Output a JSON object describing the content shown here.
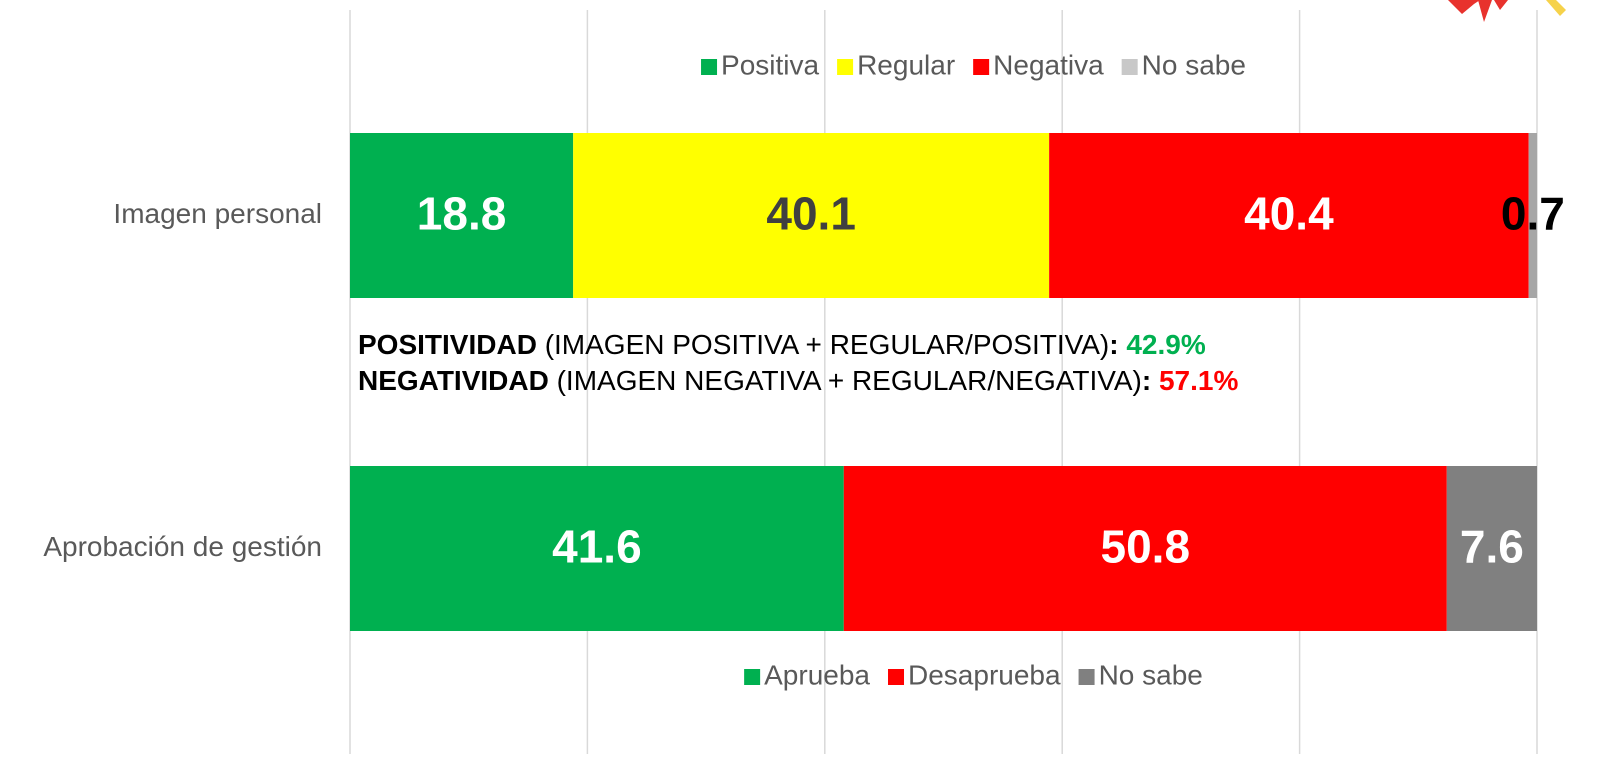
{
  "chart_data": [
    {
      "type": "bar",
      "orientation": "horizontal",
      "stacked": true,
      "categories": [
        "Imagen personal"
      ],
      "series": [
        {
          "name": "Positiva",
          "color": "#00b050",
          "label_color": "#ffffff",
          "values": [
            18.8
          ]
        },
        {
          "name": "Regular",
          "color": "#ffff00",
          "label_color": "#404040",
          "values": [
            40.1
          ]
        },
        {
          "name": "Negativa",
          "color": "#ff0000",
          "label_color": "#ffffff",
          "values": [
            40.4
          ]
        },
        {
          "name": "No sabe",
          "color": "#a6a6a6",
          "legend_color": "#c8c8c8",
          "label_color": "#000000",
          "values": [
            0.7
          ]
        }
      ],
      "xlim": [
        0,
        100
      ],
      "xticks": [
        0,
        20,
        40,
        60,
        80,
        100
      ],
      "grid": true,
      "legend": "top",
      "annotations": [
        [
          {
            "text": "POSITIVIDAD",
            "bold": true,
            "color": "#000000"
          },
          {
            "text": " (IMAGEN POSITIVA + REGULAR/POSITIVA)",
            "bold": false,
            "color": "#000000"
          },
          {
            "text": ": ",
            "bold": true,
            "color": "#000000"
          },
          {
            "text": "42.9%",
            "bold": true,
            "color": "#00b050"
          }
        ],
        [
          {
            "text": "NEGATIVIDAD",
            "bold": true,
            "color": "#000000"
          },
          {
            "text": " (IMAGEN NEGATIVA + REGULAR/NEGATIVA)",
            "bold": false,
            "color": "#000000"
          },
          {
            "text": ": ",
            "bold": true,
            "color": "#000000"
          },
          {
            "text": "57.1%",
            "bold": true,
            "color": "#ff0000"
          }
        ]
      ]
    },
    {
      "type": "bar",
      "orientation": "horizontal",
      "stacked": true,
      "categories": [
        "Aprobación de gestión"
      ],
      "series": [
        {
          "name": "Aprueba",
          "color": "#00b050",
          "label_color": "#ffffff",
          "values": [
            41.6
          ]
        },
        {
          "name": "Desaprueba",
          "color": "#ff0000",
          "label_color": "#ffffff",
          "values": [
            50.8
          ]
        },
        {
          "name": "No sabe",
          "color": "#808080",
          "label_color": "#ffffff",
          "values": [
            7.6
          ]
        }
      ],
      "xlim": [
        0,
        100
      ],
      "xticks": [
        0,
        20,
        40,
        60,
        80,
        100
      ],
      "grid": true,
      "legend": "bottom"
    }
  ]
}
